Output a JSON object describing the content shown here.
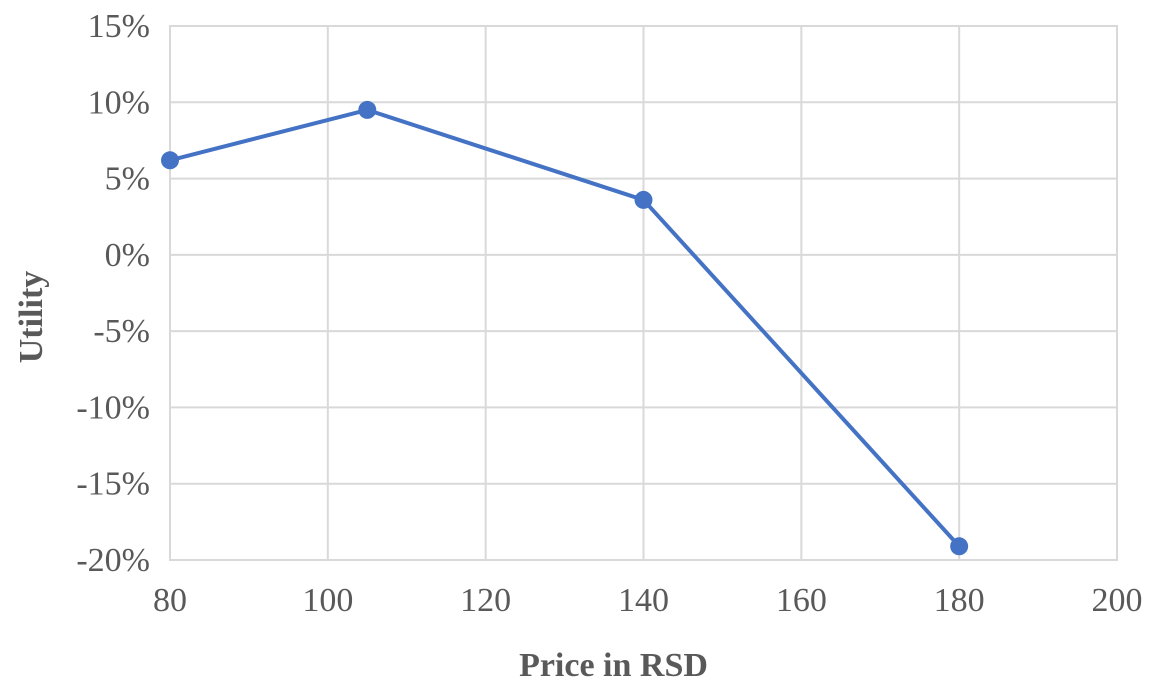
{
  "chart_data": {
    "type": "line",
    "title": "",
    "xlabel": "Price in RSD",
    "ylabel": "Utility",
    "x_ticks": [
      "80",
      "100",
      "120",
      "140",
      "160",
      "180",
      "200"
    ],
    "y_ticks": [
      "15%",
      "10%",
      "5%",
      "0%",
      "-5%",
      "-10%",
      "-15%",
      "-20%"
    ],
    "xlim": [
      80,
      200
    ],
    "ylim": [
      -0.2,
      0.15
    ],
    "grid": true,
    "legend": "none",
    "series": [
      {
        "color": "#4472c4",
        "points": [
          {
            "x": 80,
            "y": 0.062
          },
          {
            "x": 105,
            "y": 0.095
          },
          {
            "x": 140,
            "y": 0.036
          },
          {
            "x": 180,
            "y": -0.191
          }
        ]
      }
    ]
  }
}
